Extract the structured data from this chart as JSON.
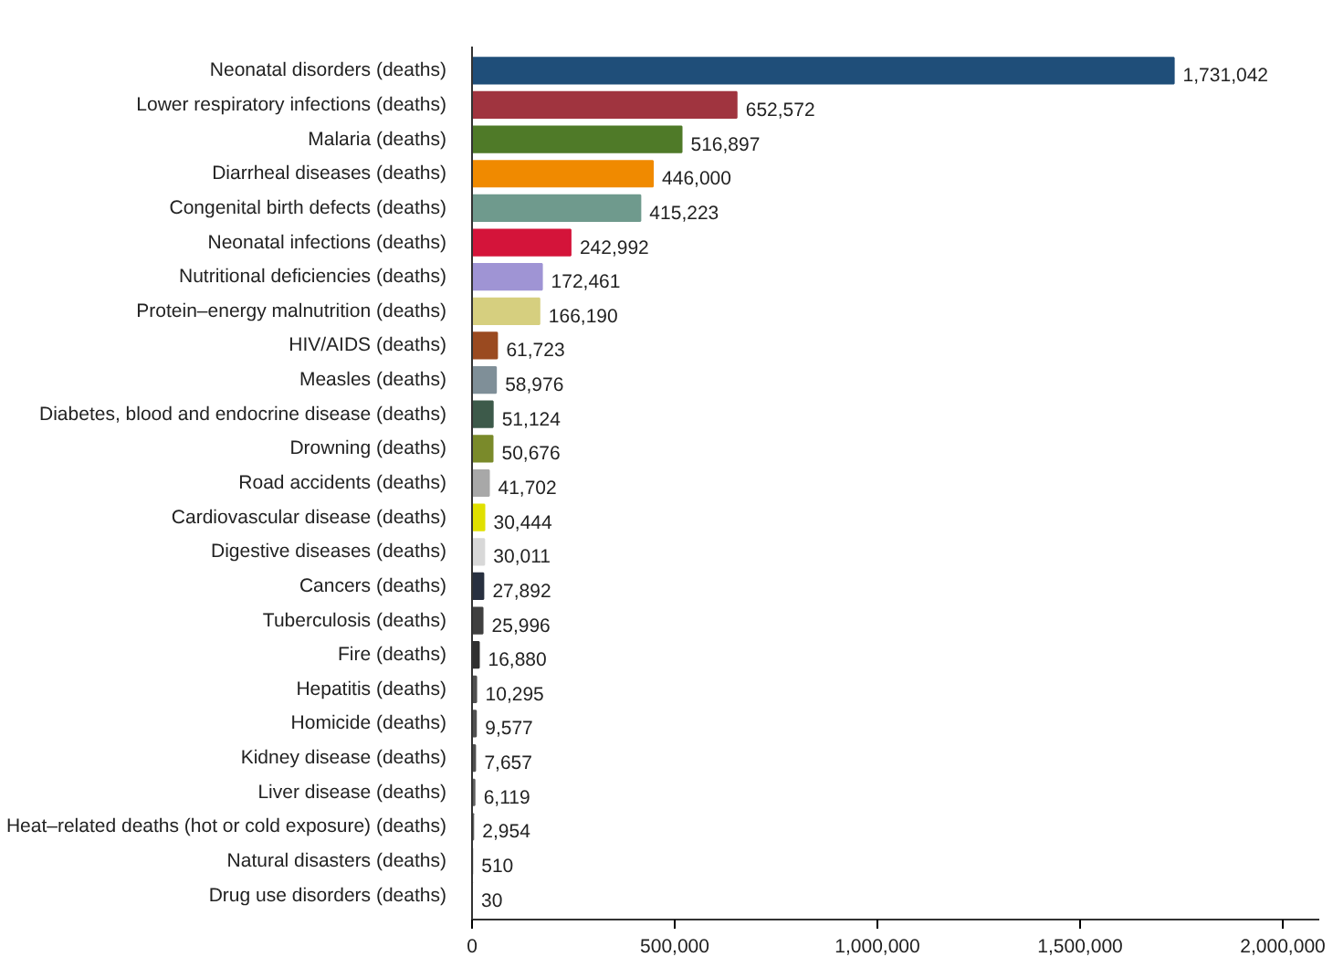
{
  "chart_data": {
    "type": "bar",
    "orientation": "horizontal",
    "grid": false,
    "value_labels": [
      "1,731,042",
      "652,572",
      "516,897",
      "446,000",
      "415,223",
      "242,992",
      "172,461",
      "166,190",
      "61,723",
      "58,976",
      "51,124",
      "50,676",
      "41,702",
      "30,444",
      "30,011",
      "27,892",
      "25,996",
      "16,880",
      "10,295",
      "9,577",
      "7,657",
      "6,119",
      "2,954",
      "510",
      "30"
    ],
    "categories": [
      "Neonatal disorders (deaths)",
      "Lower respiratory infections (deaths)",
      "Malaria (deaths)",
      "Diarrheal diseases (deaths)",
      "Congenital birth defects (deaths)",
      "Neonatal infections (deaths)",
      "Nutritional deficiencies (deaths)",
      "Protein–energy malnutrition (deaths)",
      "HIV/AIDS (deaths)",
      "Measles (deaths)",
      "Diabetes, blood and endocrine disease (deaths)",
      "Drowning (deaths)",
      "Road accidents (deaths)",
      "Cardiovascular disease (deaths)",
      "Digestive diseases (deaths)",
      "Cancers (deaths)",
      "Tuberculosis (deaths)",
      "Fire (deaths)",
      "Hepatitis (deaths)",
      "Homicide (deaths)",
      "Kidney disease (deaths)",
      "Liver disease (deaths)",
      "Heat–related deaths (hot or cold exposure) (deaths)",
      "Natural disasters (deaths)",
      "Drug use disorders (deaths)"
    ],
    "values": [
      1731042,
      652572,
      516897,
      446000,
      415223,
      242992,
      172461,
      166190,
      61723,
      58976,
      51124,
      50676,
      41702,
      30444,
      30011,
      27892,
      25996,
      16880,
      10295,
      9577,
      7657,
      6119,
      2954,
      510,
      30
    ],
    "colors": [
      "#1f4e79",
      "#a0343f",
      "#4f7a28",
      "#f08a00",
      "#6f9a8d",
      "#d4143a",
      "#9f94d4",
      "#d6cf7f",
      "#9a4a20",
      "#7f8f98",
      "#3d5a4a",
      "#7a8a2a",
      "#a8a8a8",
      "#e0e000",
      "#d8d8d8",
      "#283040",
      "#404040",
      "#303030",
      "#505050",
      "#505050",
      "#505050",
      "#606060",
      "#606060",
      "#606060",
      "#606060"
    ],
    "xlim": [
      0,
      2090000
    ],
    "xticks": [
      0,
      {
        "value": 500000,
        "label": "500,000"
      },
      {
        "value": 1000000,
        "label": "1,000,000"
      },
      {
        "value": 1500000,
        "label": "1,500,000"
      },
      {
        "value": 2000000,
        "label": "2,000,000"
      }
    ]
  }
}
